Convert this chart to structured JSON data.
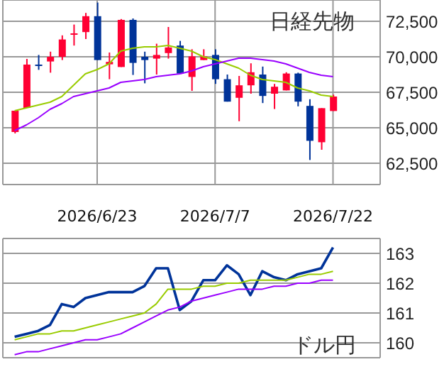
{
  "chart_data": [
    {
      "type": "candlestick",
      "title": "日経先物",
      "categories": [
        null,
        null,
        null,
        null,
        null,
        null,
        null,
        "2026/6/23",
        null,
        null,
        null,
        null,
        null,
        null,
        null,
        null,
        null,
        "2026/7/7",
        null,
        null,
        null,
        null,
        null,
        null,
        null,
        null,
        null,
        "2026/7/22"
      ],
      "ohlc": [
        [
          64700,
          66200,
          64600,
          66200
        ],
        [
          66400,
          69850,
          66400,
          69450
        ],
        [
          69450,
          70130,
          69080,
          69400
        ],
        [
          69670,
          70360,
          68880,
          70000
        ],
        [
          70000,
          71510,
          69770,
          71220
        ],
        [
          71600,
          72270,
          70790,
          71650
        ],
        [
          71740,
          73090,
          71250,
          72860
        ],
        [
          72860,
          73820,
          69770,
          69770
        ],
        [
          69470,
          70300,
          68420,
          69640
        ],
        [
          69280,
          72660,
          69280,
          72600
        ],
        [
          72600,
          72700,
          68720,
          69570
        ],
        [
          70000,
          70360,
          68130,
          69770
        ],
        [
          69870,
          70920,
          68750,
          70130
        ],
        [
          70260,
          72100,
          69870,
          70660
        ],
        [
          70790,
          71120,
          68820,
          68820
        ],
        [
          68580,
          70530,
          67600,
          70030
        ],
        [
          69770,
          70530,
          69770,
          70030
        ],
        [
          70130,
          70530,
          68090,
          68420
        ],
        [
          68420,
          68750,
          66840,
          66840
        ],
        [
          67110,
          68650,
          65460,
          67990
        ],
        [
          67990,
          69540,
          67400,
          68910
        ],
        [
          68750,
          69310,
          66740,
          67240
        ],
        [
          67400,
          68090,
          66320,
          67890
        ],
        [
          67630,
          68910,
          67630,
          68820
        ],
        [
          68820,
          68880,
          66510,
          66840
        ],
        [
          66540,
          67010,
          62730,
          64080
        ],
        [
          63980,
          66380,
          63450,
          66380
        ],
        [
          66180,
          67330,
          66180,
          67200
        ]
      ],
      "colors": [
        "#ff0033",
        "#ff0033",
        "#003399",
        "#ff0033",
        "#ff0033",
        "#ff0033",
        "#ff0033",
        "#003399",
        "#ff0033",
        "#ff0033",
        "#003399",
        "#003399",
        "#ff0033",
        "#ff0033",
        "#003399",
        "#ff0033",
        "#ff0033",
        "#003399",
        "#003399",
        "#ff0033",
        "#ff0033",
        "#003399",
        "#ff0033",
        "#ff0033",
        "#003399",
        "#003399",
        "#ff0033",
        "#ff0033"
      ],
      "series": [
        {
          "type": "line",
          "color": "#99cc00",
          "values": [
            66200,
            66400,
            66600,
            66800,
            67200,
            68000,
            68800,
            69100,
            69500,
            70400,
            70600,
            70700,
            70700,
            70800,
            70600,
            70400,
            70000,
            69800,
            69500,
            69200,
            68700,
            68400,
            68300,
            68200,
            67800,
            67600,
            67300,
            67200
          ]
        },
        {
          "type": "line",
          "color": "#9900ff",
          "values": [
            64800,
            65200,
            65700,
            66300,
            66700,
            67200,
            67400,
            67600,
            67800,
            68200,
            68300,
            68400,
            68600,
            68700,
            68800,
            69000,
            69300,
            69500,
            69700,
            69900,
            69900,
            69800,
            69700,
            69500,
            69200,
            68900,
            68700,
            68600
          ]
        }
      ],
      "ylim": [
        61000,
        74000
      ],
      "yticks": [
        {
          "value": 62500,
          "label": "62,500"
        },
        {
          "value": 65000,
          "label": "65,000"
        },
        {
          "value": 67500,
          "label": "67,500"
        },
        {
          "value": 70000,
          "label": "70,000"
        },
        {
          "value": 72500,
          "label": "72,500"
        }
      ],
      "grid": true,
      "marker": "none"
    },
    {
      "type": "line",
      "title": "ドル円",
      "categories": [
        null,
        null,
        null,
        null,
        null,
        null,
        null,
        "2026/6/23",
        null,
        null,
        null,
        null,
        null,
        null,
        null,
        null,
        null,
        "2026/7/7",
        null,
        null,
        null,
        null,
        null,
        null,
        null,
        null,
        null,
        "2026/7/22"
      ],
      "series": [
        {
          "color": "#003399",
          "values": [
            160.2,
            160.3,
            160.4,
            160.6,
            161.3,
            161.2,
            161.5,
            161.6,
            161.7,
            161.7,
            161.7,
            161.9,
            162.5,
            162.5,
            161.1,
            161.4,
            162.1,
            162.1,
            162.6,
            162.3,
            161.6,
            162.4,
            162.2,
            162.1,
            162.3,
            162.4,
            162.5,
            163.2
          ]
        },
        {
          "color": "#99cc00",
          "values": [
            160.1,
            160.2,
            160.3,
            160.3,
            160.4,
            160.4,
            160.5,
            160.6,
            160.7,
            160.8,
            160.9,
            161.0,
            161.3,
            161.8,
            161.8,
            161.8,
            161.9,
            161.9,
            162.0,
            162.0,
            162.1,
            162.1,
            162.1,
            162.1,
            162.2,
            162.3,
            162.3,
            162.4
          ]
        },
        {
          "color": "#9900ff",
          "values": [
            159.6,
            159.7,
            159.7,
            159.8,
            159.9,
            160.0,
            160.1,
            160.1,
            160.2,
            160.3,
            160.5,
            160.7,
            160.9,
            161.1,
            161.2,
            161.4,
            161.5,
            161.6,
            161.7,
            161.8,
            161.8,
            161.8,
            161.9,
            161.9,
            162.0,
            162.0,
            162.1,
            162.1
          ]
        }
      ],
      "ylim": [
        159.5,
        163.5
      ],
      "yticks": [
        160,
        161,
        162,
        163
      ],
      "grid": true,
      "tick_labels": "y",
      "marker": "none"
    }
  ]
}
